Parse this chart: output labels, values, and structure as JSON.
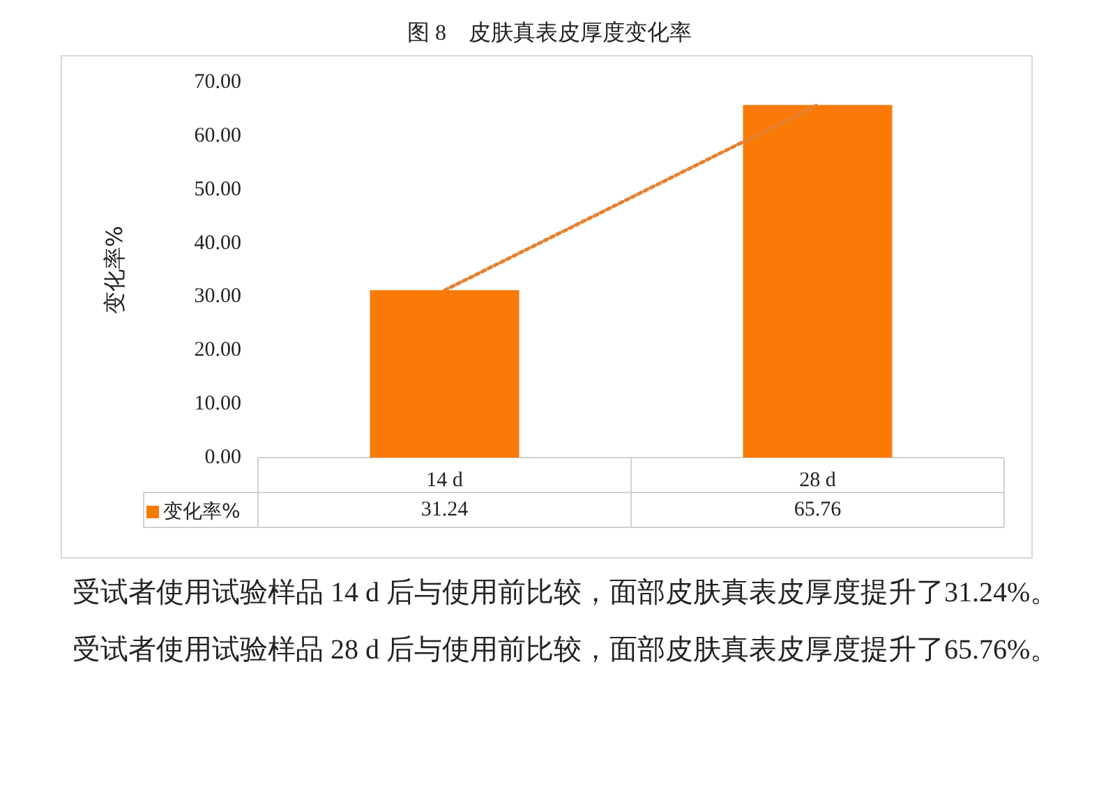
{
  "chart_data": {
    "type": "bar",
    "title": "图 8　皮肤真表皮厚度变化率",
    "ylabel": "变化率%",
    "categories": [
      "14 d",
      "28 d"
    ],
    "series": [
      {
        "name": "变化率%",
        "color": "#fa7a08",
        "values": [
          31.24,
          65.76
        ],
        "value_labels": [
          "31.24",
          "65.76"
        ]
      },
      {
        "type": "line",
        "color": "#e8802e",
        "values": [
          31.2,
          65.8
        ],
        "line_style": "dotted",
        "marker": "none"
      }
    ],
    "ylim": [
      0,
      70
    ],
    "yticks": [
      {
        "value": 0,
        "label": "0.00"
      },
      {
        "value": 10,
        "label": "10.00"
      },
      {
        "value": 20,
        "label": "20.00"
      },
      {
        "value": 30,
        "label": "30.00"
      },
      {
        "value": 40,
        "label": "40.00"
      },
      {
        "value": 50,
        "label": "50.00"
      },
      {
        "value": 60,
        "label": "60.00"
      },
      {
        "value": 70,
        "label": "70.00"
      }
    ],
    "grid": false,
    "legend": "bottom left",
    "annotations": [
      "受试者使用试验样品 14 d 后与使用前比较，面部皮肤真表皮厚度提升了31.24%。",
      "受试者使用试验样品 28 d 后与使用前比较，面部皮肤真表皮厚度提升了65.76%。"
    ]
  }
}
